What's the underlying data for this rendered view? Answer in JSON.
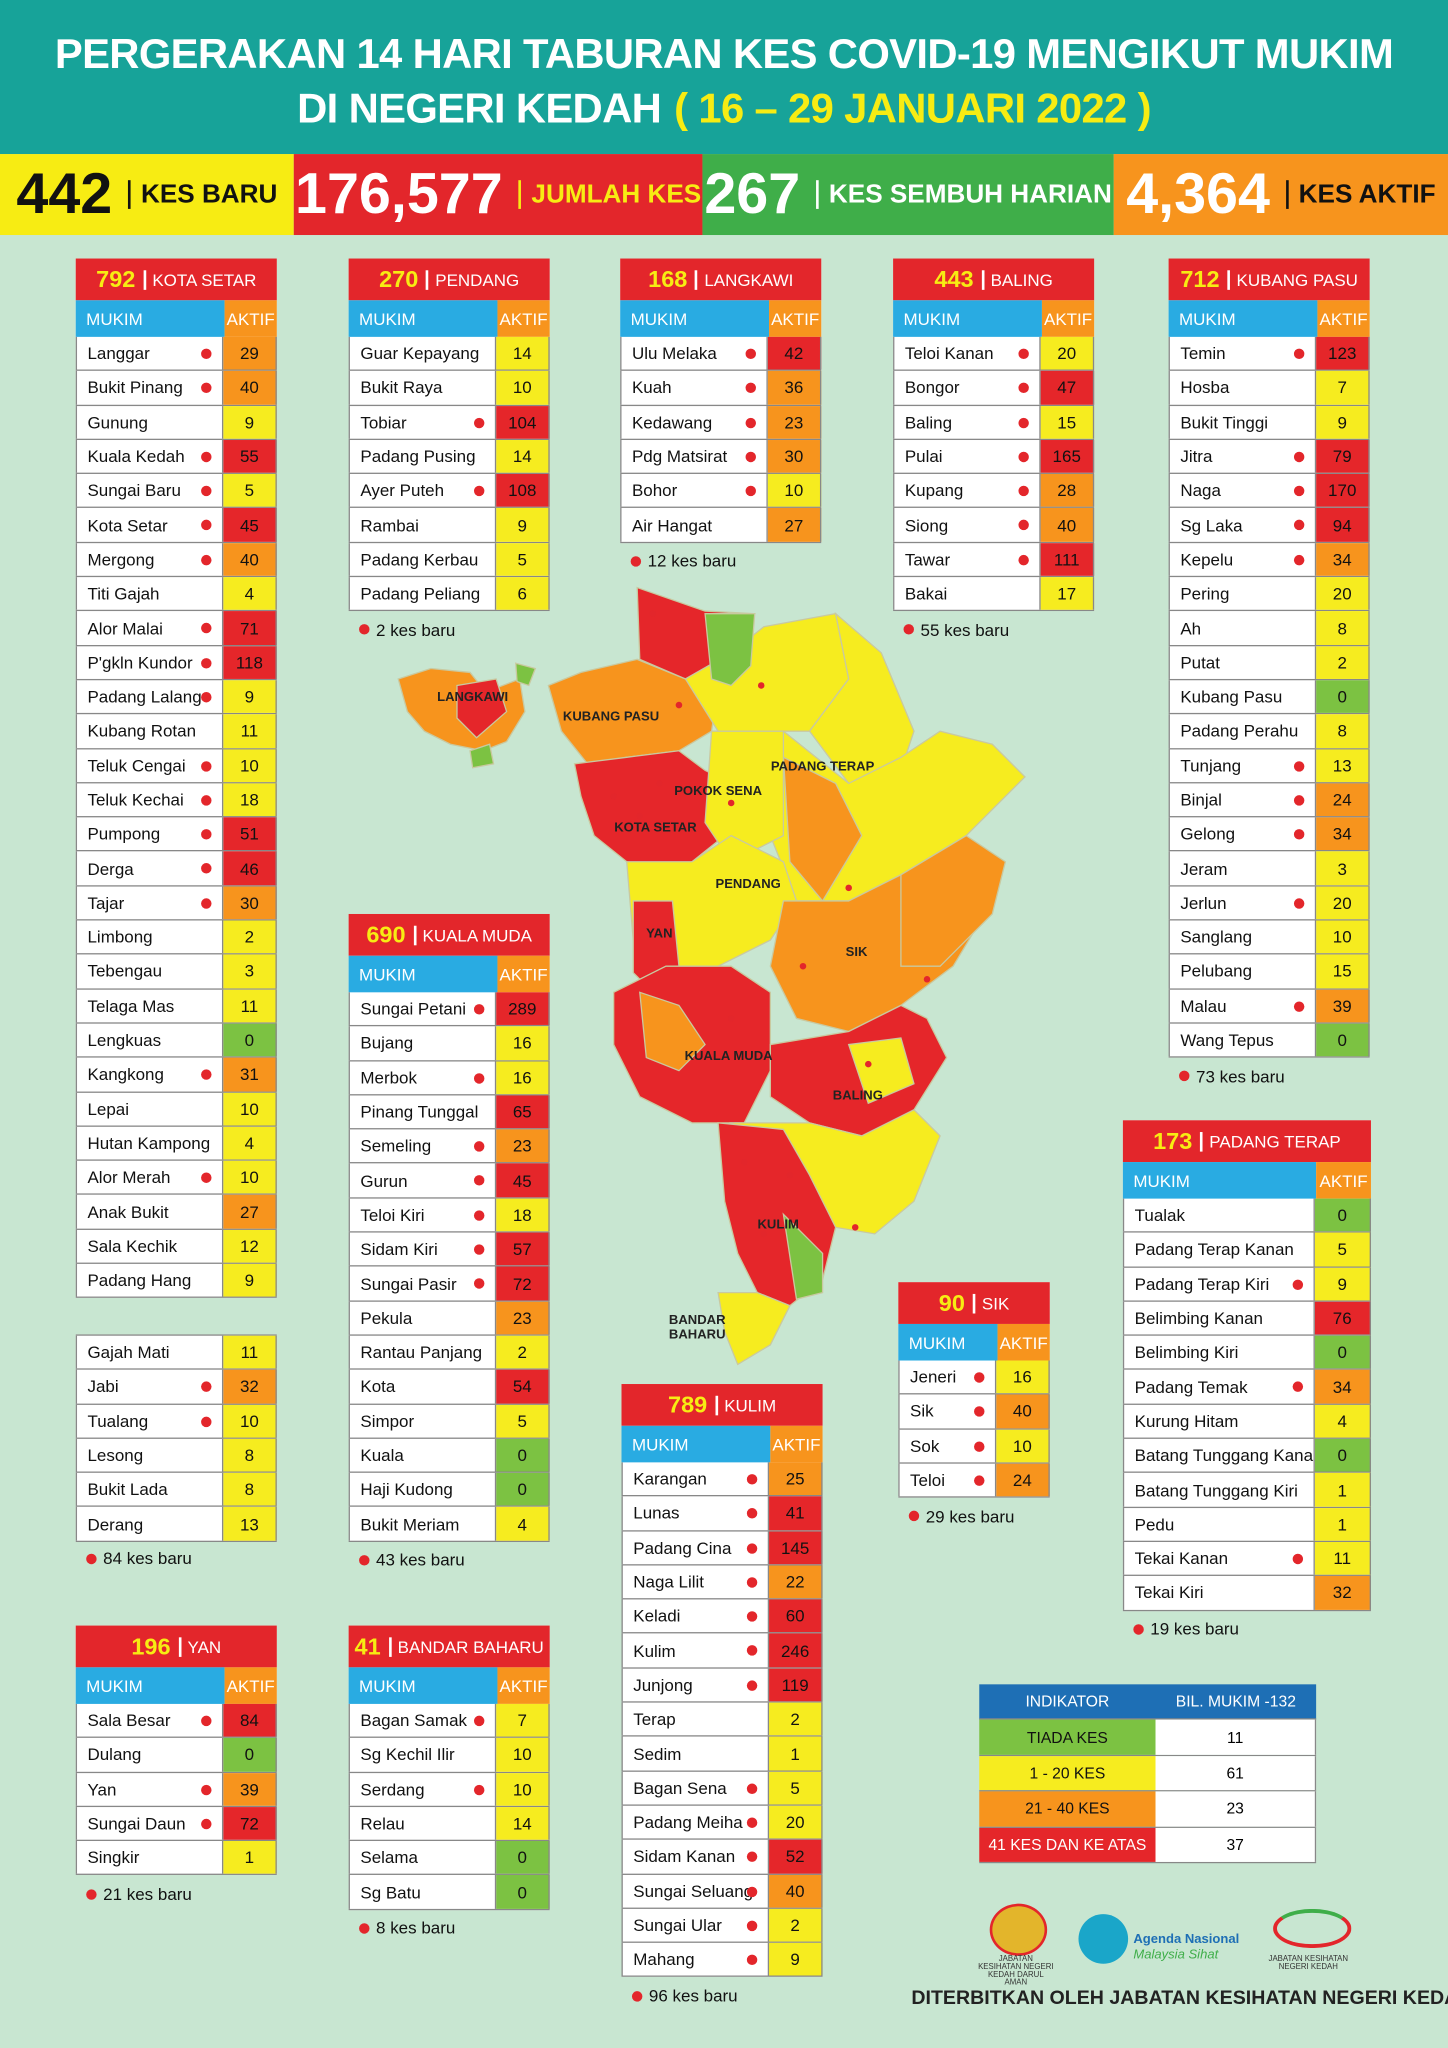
{
  "header": {
    "title_line1": "PERGERAKAN 14 HARI TABURAN KES COVID-19 MENGIKUT MUKIM",
    "title_line2": "DI NEGERI KEDAH",
    "title_dates": "( 16 – 29 JANUARI 2022 )"
  },
  "stats": [
    {
      "value": "442",
      "label": "KES BARU",
      "color": "#f7ec13",
      "text": "#111"
    },
    {
      "value": "176,577",
      "label": "JUMLAH KES",
      "color": "#e3262b",
      "text": "#fff",
      "label_color": "#f7ec13"
    },
    {
      "value": "267",
      "label": "KES SEMBUH HARIAN",
      "color": "#3fae49",
      "text": "#fff"
    },
    {
      "value": "4,364",
      "label": "KES AKTIF",
      "color": "#f7941d",
      "text": "#fff",
      "label_color": "#111"
    }
  ],
  "table_headers": {
    "name": "MUKIM",
    "value": "AKTIF"
  },
  "districts": [
    {
      "total": 792,
      "name": "KOTA SETAR",
      "rows": [
        [
          "Langgar",
          29,
          true
        ],
        [
          "Bukit Pinang",
          40,
          true
        ],
        [
          "Gunung",
          9
        ],
        [
          "Kuala Kedah",
          55,
          true
        ],
        [
          "Sungai Baru",
          5,
          true
        ],
        [
          "Kota Setar",
          45,
          true
        ],
        [
          "Mergong",
          40,
          true
        ],
        [
          "Titi Gajah",
          4
        ],
        [
          "Alor Malai",
          71,
          true
        ],
        [
          "P'gkln Kundor",
          118,
          true
        ],
        [
          "Padang Lalang",
          9,
          true
        ],
        [
          "Kubang Rotan",
          11
        ],
        [
          "Teluk Cengai",
          10,
          true
        ],
        [
          "Teluk Kechai",
          18,
          true
        ],
        [
          "Pumpong",
          51,
          true
        ],
        [
          "Derga",
          46,
          true
        ],
        [
          "Tajar",
          30,
          true
        ],
        [
          "Limbong",
          2
        ],
        [
          "Tebengau",
          3
        ],
        [
          "Telaga Mas",
          11
        ],
        [
          "Lengkuas",
          0
        ],
        [
          "Kangkong",
          31,
          true
        ],
        [
          "Lepai",
          10
        ],
        [
          "Hutan Kampong",
          4
        ],
        [
          "Alor Merah",
          10,
          true
        ],
        [
          "Anak Bukit",
          27
        ],
        [
          "Sala Kechik",
          12
        ],
        [
          "Padang Hang",
          9
        ]
      ],
      "rows2": [
        [
          "Gajah Mati",
          11
        ],
        [
          "Jabi",
          32,
          true
        ],
        [
          "Tualang",
          10,
          true
        ],
        [
          "Lesong",
          8
        ],
        [
          "Bukit Lada",
          8
        ],
        [
          "Derang",
          13
        ]
      ],
      "note": "84 kes baru"
    },
    {
      "total": 270,
      "name": "PENDANG",
      "rows": [
        [
          "Guar Kepayang",
          14
        ],
        [
          "Bukit Raya",
          10
        ],
        [
          "Tobiar",
          104,
          true
        ],
        [
          "Padang Pusing",
          14
        ],
        [
          "Ayer Puteh",
          108,
          true
        ],
        [
          "Rambai",
          9
        ],
        [
          "Padang Kerbau",
          5
        ],
        [
          "Padang Peliang",
          6
        ]
      ],
      "note": "2 kes baru"
    },
    {
      "total": 168,
      "name": "LANGKAWI",
      "rows": [
        [
          "Ulu Melaka",
          42,
          true
        ],
        [
          "Kuah",
          36,
          true
        ],
        [
          "Kedawang",
          23,
          true
        ],
        [
          "Pdg Matsirat",
          30,
          true
        ],
        [
          "Bohor",
          10,
          true
        ],
        [
          "Air Hangat",
          27
        ]
      ],
      "note": "12 kes baru"
    },
    {
      "total": 443,
      "name": "BALING",
      "rows": [
        [
          "Teloi Kanan",
          20,
          true
        ],
        [
          "Bongor",
          47,
          true
        ],
        [
          "Baling",
          15,
          true
        ],
        [
          "Pulai",
          165,
          true
        ],
        [
          "Kupang",
          28,
          true
        ],
        [
          "Siong",
          40,
          true
        ],
        [
          "Tawar",
          111,
          true
        ],
        [
          "Bakai",
          17
        ]
      ],
      "note": "55 kes baru"
    },
    {
      "total": 712,
      "name": "KUBANG PASU",
      "rows": [
        [
          "Temin",
          123,
          true
        ],
        [
          "Hosba",
          7
        ],
        [
          "Bukit Tinggi",
          9
        ],
        [
          "Jitra",
          79,
          true
        ],
        [
          "Naga",
          170,
          true
        ],
        [
          "Sg Laka",
          94,
          true
        ],
        [
          "Kepelu",
          34,
          true
        ],
        [
          "Pering",
          20
        ],
        [
          "Ah",
          8
        ],
        [
          "Putat",
          2
        ],
        [
          "Kubang Pasu",
          0
        ],
        [
          "Padang Perahu",
          8
        ],
        [
          "Tunjang",
          13,
          true
        ],
        [
          "Binjal",
          24,
          true
        ],
        [
          "Gelong",
          34,
          true
        ],
        [
          "Jeram",
          3
        ],
        [
          "Jerlun",
          20,
          true
        ],
        [
          "Sanglang",
          10
        ],
        [
          "Pelubang",
          15
        ],
        [
          "Malau",
          39,
          true
        ],
        [
          "Wang Tepus",
          0
        ]
      ],
      "note": "73 kes baru"
    },
    {
      "total": 690,
      "name": "KUALA MUDA",
      "rows": [
        [
          "Sungai Petani",
          289,
          true
        ],
        [
          "Bujang",
          16
        ],
        [
          "Merbok",
          16,
          true
        ],
        [
          "Pinang Tunggal",
          65
        ],
        [
          "Semeling",
          23,
          true
        ],
        [
          "Gurun",
          45,
          true
        ],
        [
          "Teloi Kiri",
          18,
          true
        ],
        [
          "Sidam Kiri",
          57,
          true
        ],
        [
          "Sungai Pasir",
          72,
          true
        ],
        [
          "Pekula",
          23
        ],
        [
          "Rantau Panjang",
          2
        ],
        [
          "Kota",
          54
        ],
        [
          "Simpor",
          5
        ],
        [
          "Kuala",
          0
        ],
        [
          "Haji Kudong",
          0
        ],
        [
          "Bukit Meriam",
          4
        ]
      ],
      "note": "43 kes baru"
    },
    {
      "total": 173,
      "name": "PADANG TERAP",
      "rows": [
        [
          "Tualak",
          0
        ],
        [
          "Padang Terap Kanan",
          5
        ],
        [
          "Padang Terap Kiri",
          9,
          true
        ],
        [
          "Belimbing Kanan",
          76
        ],
        [
          "Belimbing Kiri",
          0
        ],
        [
          "Padang Temak",
          34,
          true
        ],
        [
          "Kurung Hitam",
          4
        ],
        [
          "Batang Tunggang Kanan",
          0
        ],
        [
          "Batang Tunggang Kiri",
          1
        ],
        [
          "Pedu",
          1
        ],
        [
          "Tekai Kanan",
          11,
          true
        ],
        [
          "Tekai Kiri",
          32
        ]
      ],
      "note": "19 kes baru"
    },
    {
      "total": 90,
      "name": "SIK",
      "rows": [
        [
          "Jeneri",
          16,
          true
        ],
        [
          "Sik",
          40,
          true
        ],
        [
          "Sok",
          10,
          true
        ],
        [
          "Teloi",
          24,
          true
        ]
      ],
      "note": "29 kes baru"
    },
    {
      "total": 789,
      "name": "KULIM",
      "rows": [
        [
          "Karangan",
          25,
          true
        ],
        [
          "Lunas",
          41,
          true
        ],
        [
          "Padang Cina",
          145,
          true
        ],
        [
          "Naga Lilit",
          22,
          true
        ],
        [
          "Keladi",
          60,
          true
        ],
        [
          "Kulim",
          246,
          true
        ],
        [
          "Junjong",
          119,
          true
        ],
        [
          "Terap",
          2
        ],
        [
          "Sedim",
          1
        ],
        [
          "Bagan Sena",
          5,
          true
        ],
        [
          "Padang Meiha",
          20,
          true
        ],
        [
          "Sidam Kanan",
          52,
          true
        ],
        [
          "Sungai Seluang",
          40,
          true
        ],
        [
          "Sungai Ular",
          2,
          true
        ],
        [
          "Mahang",
          9,
          true
        ]
      ],
      "note": "96 kes baru"
    },
    {
      "total": 196,
      "name": "YAN",
      "rows": [
        [
          "Sala Besar",
          84,
          true
        ],
        [
          "Dulang",
          0
        ],
        [
          "Yan",
          39,
          true
        ],
        [
          "Sungai Daun",
          72,
          true
        ],
        [
          "Singkir",
          1
        ]
      ],
      "note": "21 kes baru"
    },
    {
      "total": 41,
      "name": "BANDAR BAHARU",
      "rows": [
        [
          "Bagan Samak",
          7,
          true
        ],
        [
          "Sg Kechil Ilir",
          10
        ],
        [
          "Serdang",
          10,
          true
        ],
        [
          "Relau",
          14
        ],
        [
          "Selama",
          0
        ],
        [
          "Sg Batu",
          0
        ]
      ],
      "note": "8 kes baru"
    }
  ],
  "map_labels": [
    "LANGKAWI",
    "KUBANG PASU",
    "PADANG TERAP",
    "POKOK SENA",
    "KOTA SETAR",
    "PENDANG",
    "YAN",
    "SIK",
    "KUALA MUDA",
    "BALING",
    "KULIM",
    "BANDAR BAHARU"
  ],
  "indicator": {
    "header": [
      "INDIKATOR",
      "BIL. MUKIM -132"
    ],
    "rows": [
      {
        "label": "TIADA KES",
        "count": 11,
        "color": "#7cc242"
      },
      {
        "label": "1 - 20 KES",
        "count": 61,
        "color": "#f6ec1f"
      },
      {
        "label": "21 - 40 KES",
        "count": 23,
        "color": "#f7941d"
      },
      {
        "label": "41 KES DAN KE ATAS",
        "count": 37,
        "color": "#e5262a"
      }
    ]
  },
  "logos": [
    "JABATAN KESIHATAN NEGERI KEDAH DARUL AMAN",
    "Agenda Nasional",
    "Malaysia Sihat",
    "JABATAN KESIHATAN NEGERI KEDAH"
  ],
  "footer": "DITERBITKAN OLEH JABATAN KESIHATAN NEGERI KEDAH"
}
